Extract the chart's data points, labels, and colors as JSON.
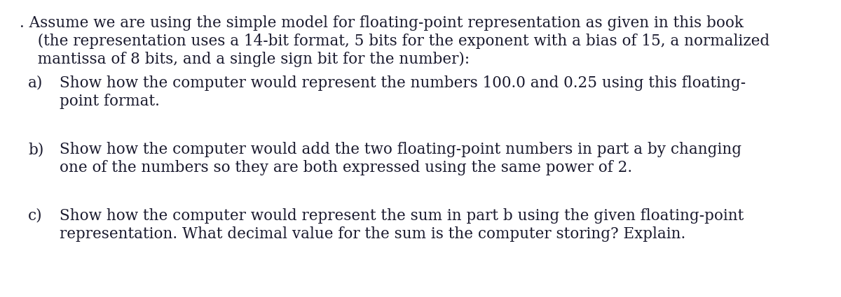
{
  "background_color": "#ffffff",
  "text_color": "#1a1a2e",
  "font_family": "DejaVu Serif",
  "intro_lines": [
    ". Assume we are using the simple model for floating-point representation as given in this book",
    "  (the representation uses a 14-bit format, 5 bits for the exponent with a bias of 15, a normalized",
    "  mantissa of 8 bits, and a single sign bit for the number):"
  ],
  "items": [
    {
      "label": "a)",
      "lines": [
        "Show how the computer would represent the numbers 100.0 and 0.25 using this floating-",
        "point format."
      ]
    },
    {
      "label": "b)",
      "lines": [
        "Show how the computer would add the two floating-point numbers in part a by changing",
        "one of the numbers so they are both expressed using the same power of 2."
      ]
    },
    {
      "label": "c)",
      "lines": [
        "Show how the computer would represent the sum in part b using the given floating-point",
        "representation. What decimal value for the sum is the computer storing? Explain."
      ]
    }
  ],
  "font_size": 15.5,
  "fig_width": 12.0,
  "fig_height": 4.25,
  "dpi": 100
}
